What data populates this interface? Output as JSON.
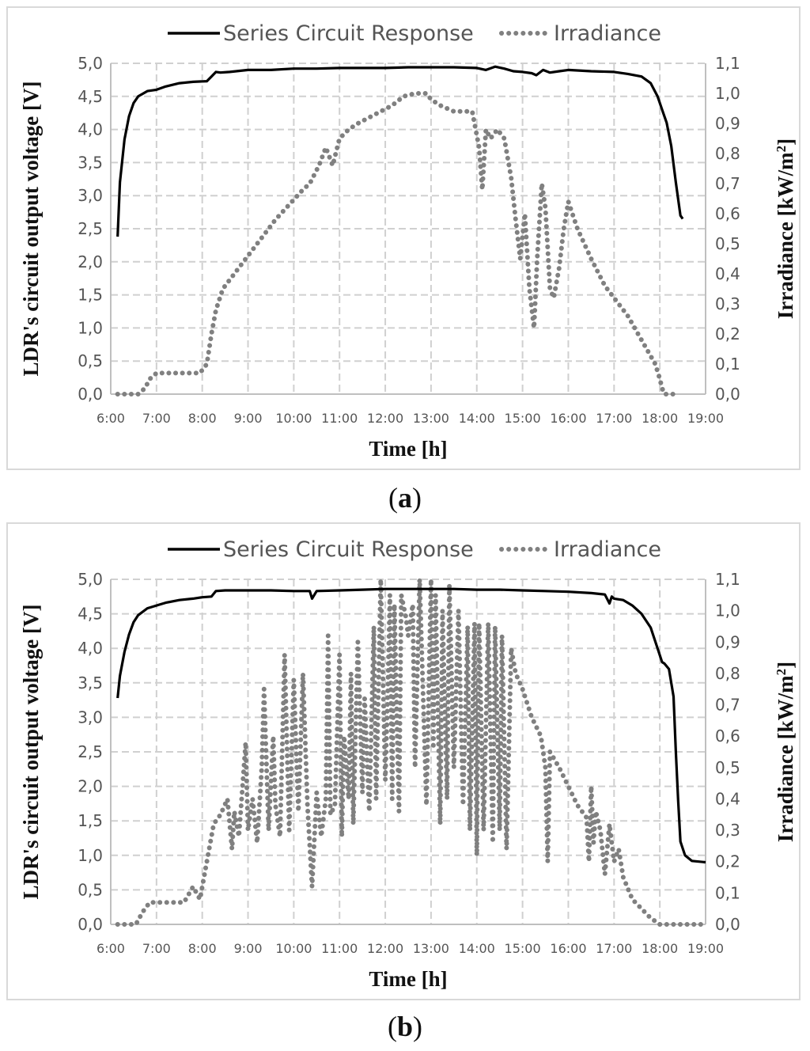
{
  "panels": [
    {
      "label_open": "(",
      "label_letter": "a",
      "label_close": ")"
    },
    {
      "label_open": "(",
      "label_letter": "b",
      "label_close": ")"
    }
  ],
  "chart_data": [
    {
      "type": "line",
      "title": "",
      "xlabel": "Time [h]",
      "ylabel": "LDR's circuit output voltage [V]",
      "y2label_prefix": "Irradiance [kW/m",
      "y2label_sup": "2",
      "y2label_suffix": "]",
      "xlim": [
        6,
        19
      ],
      "ylim": [
        0,
        5
      ],
      "y2lim": [
        0,
        1.1
      ],
      "x_tick_labels": [
        "6:00",
        "7:00",
        "8:00",
        "9:00",
        "10:00",
        "11:00",
        "12:00",
        "13:00",
        "14:00",
        "15:00",
        "16:00",
        "17:00",
        "18:00",
        "19:00"
      ],
      "y_tick_labels": [
        "0,0",
        "0,5",
        "1,0",
        "1,5",
        "2,0",
        "2,5",
        "3,0",
        "3,5",
        "4,0",
        "4,5",
        "5,0"
      ],
      "y2_tick_labels": [
        "0,0",
        "0,1",
        "0,2",
        "0,3",
        "0,4",
        "0,5",
        "0,6",
        "0,7",
        "0,8",
        "0,9",
        "1,0",
        "1,1"
      ],
      "grid": true,
      "legend_position": "top",
      "legend": [
        "Series Circuit Response",
        "Irradiance"
      ],
      "colors": {
        "voltage": "#000000",
        "irradiance": "#808080",
        "grid": "#d0d0d0"
      },
      "series": [
        {
          "name": "Series Circuit Response",
          "axis": "left",
          "x": [
            6.15,
            6.2,
            6.3,
            6.4,
            6.5,
            6.6,
            6.8,
            7.0,
            7.2,
            7.5,
            7.8,
            8.1,
            8.2,
            8.3,
            8.4,
            8.6,
            9.0,
            9.5,
            10.0,
            10.5,
            11.0,
            11.5,
            12.0,
            12.5,
            13.0,
            13.5,
            14.0,
            14.2,
            14.4,
            14.6,
            14.8,
            15.0,
            15.2,
            15.3,
            15.45,
            15.6,
            15.8,
            16.0,
            16.5,
            17.0,
            17.3,
            17.6,
            17.8,
            17.95,
            18.05,
            18.15,
            18.25,
            18.35,
            18.45,
            18.5
          ],
          "values": [
            2.38,
            3.2,
            3.85,
            4.2,
            4.4,
            4.5,
            4.58,
            4.6,
            4.65,
            4.7,
            4.72,
            4.73,
            4.8,
            4.87,
            4.86,
            4.87,
            4.9,
            4.9,
            4.92,
            4.92,
            4.93,
            4.93,
            4.93,
            4.94,
            4.94,
            4.94,
            4.93,
            4.9,
            4.95,
            4.92,
            4.88,
            4.87,
            4.85,
            4.82,
            4.9,
            4.86,
            4.88,
            4.9,
            4.88,
            4.87,
            4.84,
            4.8,
            4.7,
            4.5,
            4.3,
            4.1,
            3.75,
            3.2,
            2.7,
            2.65
          ]
        },
        {
          "name": "Irradiance",
          "axis": "right",
          "x": [
            6.15,
            6.3,
            6.45,
            6.6,
            6.75,
            6.85,
            7.0,
            7.5,
            7.95,
            8.1,
            8.2,
            8.3,
            8.45,
            8.7,
            9.0,
            9.3,
            9.6,
            9.9,
            10.2,
            10.35,
            10.55,
            10.7,
            10.85,
            11.0,
            11.2,
            11.4,
            11.65,
            11.9,
            12.15,
            12.4,
            12.65,
            12.9,
            13.0,
            13.2,
            13.5,
            13.9,
            14.05,
            14.12,
            14.2,
            14.3,
            14.45,
            14.6,
            14.75,
            14.85,
            14.95,
            15.05,
            15.15,
            15.25,
            15.32,
            15.42,
            15.5,
            15.6,
            15.68,
            15.8,
            15.9,
            16.0,
            16.2,
            16.5,
            16.8,
            17.0,
            17.3,
            17.6,
            17.9,
            18.0,
            18.05,
            18.1,
            18.25,
            18.4
          ],
          "values": [
            0.0,
            0.0,
            0.0,
            0.0,
            0.02,
            0.05,
            0.07,
            0.07,
            0.07,
            0.1,
            0.2,
            0.28,
            0.35,
            0.4,
            0.46,
            0.52,
            0.58,
            0.63,
            0.68,
            0.7,
            0.76,
            0.82,
            0.76,
            0.85,
            0.88,
            0.9,
            0.92,
            0.94,
            0.96,
            0.99,
            1.0,
            1.0,
            0.98,
            0.96,
            0.94,
            0.94,
            0.82,
            0.68,
            0.88,
            0.85,
            0.88,
            0.85,
            0.72,
            0.58,
            0.45,
            0.6,
            0.35,
            0.22,
            0.45,
            0.7,
            0.62,
            0.35,
            0.32,
            0.42,
            0.55,
            0.64,
            0.55,
            0.45,
            0.36,
            0.32,
            0.26,
            0.18,
            0.1,
            0.05,
            0.02,
            0.0,
            0.0,
            0.0
          ]
        }
      ]
    },
    {
      "type": "line",
      "title": "",
      "xlabel": "Time [h]",
      "ylabel": "LDR's circuit output voltage [V]",
      "y2label_prefix": "Irradiance [kW/m",
      "y2label_sup": "2",
      "y2label_suffix": "]",
      "xlim": [
        6,
        19
      ],
      "ylim": [
        0,
        5
      ],
      "y2lim": [
        0,
        1.1
      ],
      "x_tick_labels": [
        "6:00",
        "7:00",
        "8:00",
        "9:00",
        "10:00",
        "11:00",
        "12:00",
        "13:00",
        "14:00",
        "15:00",
        "16:00",
        "17:00",
        "18:00",
        "19:00"
      ],
      "y_tick_labels": [
        "0,0",
        "0,5",
        "1,0",
        "1,5",
        "2,0",
        "2,5",
        "3,0",
        "3,5",
        "4,0",
        "4,5",
        "5,0"
      ],
      "y2_tick_labels": [
        "0,0",
        "0,1",
        "0,2",
        "0,3",
        "0,4",
        "0,5",
        "0,6",
        "0,7",
        "0,8",
        "0,9",
        "1,0",
        "1,1"
      ],
      "grid": true,
      "legend_position": "top",
      "legend": [
        "Series Circuit Response",
        "Irradiance"
      ],
      "colors": {
        "voltage": "#000000",
        "irradiance": "#808080",
        "grid": "#d0d0d0"
      },
      "series": [
        {
          "name": "Series Circuit Response",
          "axis": "left",
          "x": [
            6.15,
            6.2,
            6.3,
            6.4,
            6.5,
            6.6,
            6.8,
            7.0,
            7.2,
            7.5,
            7.8,
            8.0,
            8.2,
            8.3,
            8.5,
            9.0,
            9.5,
            10.0,
            10.35,
            10.4,
            10.5,
            11.0,
            11.5,
            12.0,
            12.5,
            13.0,
            13.5,
            14.0,
            14.5,
            15.0,
            15.5,
            16.0,
            16.5,
            16.8,
            16.9,
            16.95,
            17.0,
            17.2,
            17.4,
            17.6,
            17.8,
            17.95,
            18.05,
            18.1,
            18.2,
            18.3,
            18.35,
            18.4,
            18.45,
            18.55,
            18.7,
            19.0
          ],
          "values": [
            3.28,
            3.6,
            3.95,
            4.2,
            4.38,
            4.48,
            4.58,
            4.62,
            4.66,
            4.7,
            4.72,
            4.74,
            4.75,
            4.83,
            4.84,
            4.84,
            4.84,
            4.83,
            4.83,
            4.72,
            4.83,
            4.84,
            4.85,
            4.86,
            4.86,
            4.86,
            4.86,
            4.85,
            4.85,
            4.84,
            4.83,
            4.82,
            4.8,
            4.78,
            4.65,
            4.75,
            4.72,
            4.7,
            4.62,
            4.5,
            4.3,
            4.0,
            3.8,
            3.78,
            3.7,
            3.3,
            2.5,
            1.8,
            1.2,
            1.0,
            0.92,
            0.9
          ]
        },
        {
          "name": "Irradiance",
          "axis": "right",
          "x": [
            6.15,
            6.4,
            6.55,
            6.7,
            6.85,
            7.2,
            7.6,
            7.8,
            7.95,
            8.1,
            8.25,
            8.4,
            8.55,
            8.65,
            8.7,
            8.8,
            8.9,
            8.95,
            9.0,
            9.1,
            9.2,
            9.3,
            9.35,
            9.45,
            9.55,
            9.6,
            9.7,
            9.8,
            9.9,
            10.0,
            10.1,
            10.2,
            10.3,
            10.4,
            10.5,
            10.6,
            10.7,
            10.75,
            10.8,
            10.9,
            11.0,
            11.05,
            11.1,
            11.2,
            11.25,
            11.3,
            11.4,
            11.5,
            11.55,
            11.65,
            11.75,
            11.8,
            11.9,
            12.0,
            12.05,
            12.1,
            12.15,
            12.2,
            12.3,
            12.35,
            12.45,
            12.5,
            12.6,
            12.65,
            12.75,
            12.9,
            13.0,
            13.05,
            13.1,
            13.2,
            13.25,
            13.35,
            13.4,
            13.5,
            13.6,
            13.7,
            13.8,
            13.85,
            13.95,
            14.0,
            14.05,
            14.15,
            14.25,
            14.35,
            14.4,
            14.5,
            14.55,
            14.65,
            14.75,
            14.85,
            15.0,
            15.2,
            15.4,
            15.5,
            15.55,
            15.6,
            15.8,
            16.0,
            16.2,
            16.4,
            16.45,
            16.5,
            16.55,
            16.6,
            16.7,
            16.8,
            16.9,
            17.0,
            17.1,
            17.2,
            17.4,
            17.6,
            17.8,
            17.9,
            18.0,
            18.2,
            18.5,
            18.8,
            19.0
          ],
          "values": [
            0.0,
            0.0,
            0.0,
            0.04,
            0.07,
            0.07,
            0.07,
            0.12,
            0.08,
            0.2,
            0.32,
            0.35,
            0.4,
            0.24,
            0.36,
            0.28,
            0.48,
            0.58,
            0.3,
            0.4,
            0.26,
            0.5,
            0.75,
            0.3,
            0.6,
            0.38,
            0.28,
            0.86,
            0.3,
            0.78,
            0.36,
            0.8,
            0.38,
            0.12,
            0.42,
            0.28,
            0.4,
            0.92,
            0.35,
            0.38,
            0.86,
            0.28,
            0.6,
            0.4,
            0.8,
            0.32,
            0.9,
            0.42,
            0.72,
            0.36,
            0.95,
            0.4,
            1.1,
            0.46,
            0.72,
            1.05,
            0.4,
            1.02,
            0.36,
            1.05,
            0.98,
            0.92,
            1.02,
            0.5,
            1.1,
            0.38,
            1.1,
            0.56,
            1.05,
            0.32,
            1.0,
            0.4,
            1.08,
            0.5,
            1.0,
            0.38,
            0.95,
            0.3,
            0.96,
            0.22,
            0.96,
            0.3,
            0.96,
            0.26,
            0.95,
            0.3,
            0.92,
            0.24,
            0.88,
            0.8,
            0.75,
            0.66,
            0.6,
            0.5,
            0.2,
            0.55,
            0.5,
            0.44,
            0.38,
            0.34,
            0.2,
            0.44,
            0.26,
            0.36,
            0.3,
            0.16,
            0.32,
            0.2,
            0.24,
            0.15,
            0.08,
            0.05,
            0.02,
            0.01,
            0.0,
            0.0,
            0.0,
            0.0,
            0.0
          ]
        }
      ]
    }
  ]
}
